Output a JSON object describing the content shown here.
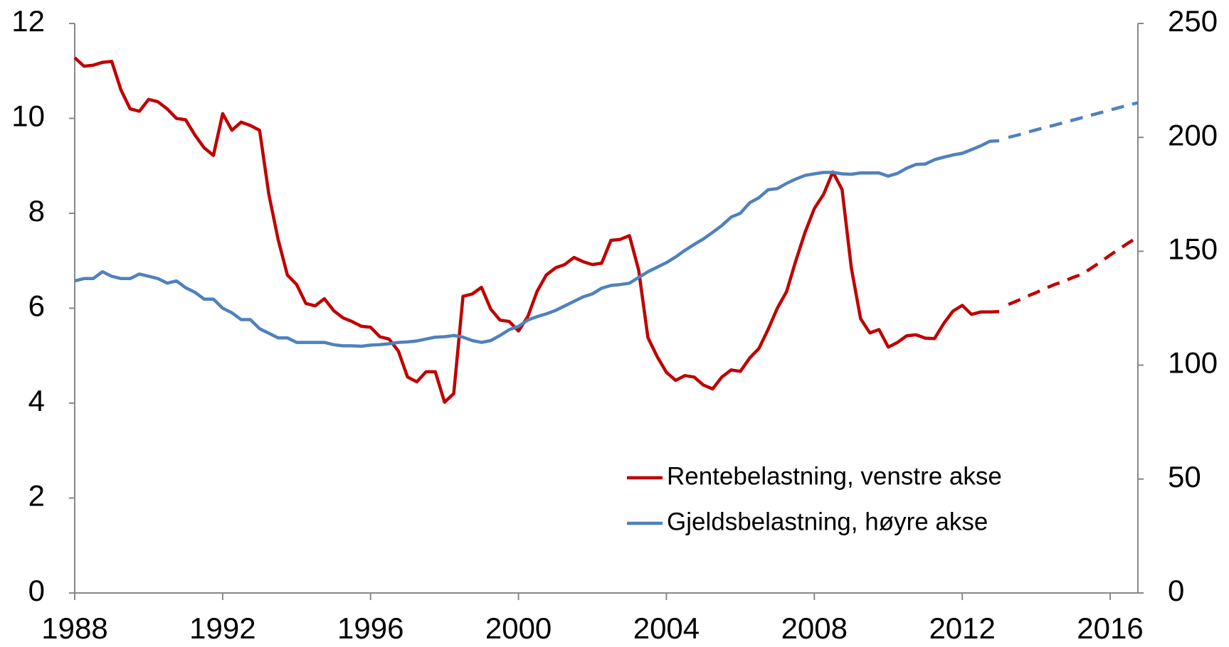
{
  "chart_data": {
    "type": "line",
    "x": [
      1988,
      1988.25,
      1988.5,
      1988.75,
      1989,
      1989.25,
      1989.5,
      1989.75,
      1990,
      1990.25,
      1990.5,
      1990.75,
      1991,
      1991.25,
      1991.5,
      1991.75,
      1992,
      1992.25,
      1992.5,
      1992.75,
      1993,
      1993.25,
      1993.5,
      1993.75,
      1994,
      1994.25,
      1994.5,
      1994.75,
      1995,
      1995.25,
      1995.5,
      1995.75,
      1996,
      1996.25,
      1996.5,
      1996.75,
      1997,
      1997.25,
      1997.5,
      1997.75,
      1998,
      1998.25,
      1998.5,
      1998.75,
      1999,
      1999.25,
      1999.5,
      1999.75,
      2000,
      2000.25,
      2000.5,
      2000.75,
      2001,
      2001.25,
      2001.5,
      2001.75,
      2002,
      2002.25,
      2002.5,
      2002.75,
      2003,
      2003.25,
      2003.5,
      2003.75,
      2004,
      2004.25,
      2004.5,
      2004.75,
      2005,
      2005.25,
      2005.5,
      2005.75,
      2006,
      2006.25,
      2006.5,
      2006.75,
      2007,
      2007.25,
      2007.5,
      2007.75,
      2008,
      2008.25,
      2008.5,
      2008.75,
      2009,
      2009.25,
      2009.5,
      2009.75,
      2010,
      2010.25,
      2010.5,
      2010.75,
      2011,
      2011.25,
      2011.5,
      2011.75,
      2012,
      2012.25,
      2012.5,
      2012.75,
      2013,
      2013.25,
      2013.5,
      2013.75,
      2014,
      2014.25,
      2014.5,
      2014.75,
      2015,
      2015.25,
      2015.5,
      2015.75,
      2016,
      2016.25,
      2016.5,
      2016.75
    ],
    "forecast_from": 2013.25,
    "series": [
      {
        "name": "Rentebelastning, venstre akse",
        "color": "#c00000",
        "axis": "y",
        "values": [
          11.28,
          11.1,
          11.12,
          11.18,
          11.2,
          10.6,
          10.2,
          10.15,
          10.4,
          10.35,
          10.2,
          10.0,
          9.97,
          9.65,
          9.38,
          9.22,
          10.1,
          9.75,
          9.92,
          9.85,
          9.75,
          8.4,
          7.45,
          6.7,
          6.5,
          6.1,
          6.05,
          6.2,
          5.95,
          5.8,
          5.72,
          5.62,
          5.6,
          5.4,
          5.35,
          5.1,
          4.55,
          4.45,
          4.66,
          4.66,
          4.02,
          4.2,
          6.25,
          6.3,
          6.44,
          5.98,
          5.75,
          5.72,
          5.52,
          5.82,
          6.35,
          6.7,
          6.85,
          6.92,
          7.07,
          6.98,
          6.92,
          6.95,
          7.43,
          7.45,
          7.53,
          6.8,
          5.38,
          4.98,
          4.65,
          4.48,
          4.58,
          4.55,
          4.38,
          4.3,
          4.55,
          4.7,
          4.67,
          4.95,
          5.15,
          5.55,
          6.0,
          6.35,
          7.0,
          7.6,
          8.1,
          8.4,
          8.87,
          8.5,
          6.85,
          5.78,
          5.48,
          5.55,
          5.18,
          5.28,
          5.42,
          5.44,
          5.37,
          5.36,
          5.68,
          5.94,
          6.06,
          5.87,
          5.92,
          5.92,
          5.93,
          6.08,
          6.16,
          6.25,
          6.33,
          6.42,
          6.5,
          6.57,
          6.65,
          6.72,
          6.85,
          6.98,
          7.12,
          7.25,
          7.38,
          7.5
        ]
      },
      {
        "name": "Gjeldsbelastning, høyre akse",
        "color": "#4f81bd",
        "axis": "y2",
        "values": [
          137,
          138,
          138,
          141,
          139,
          138,
          138,
          140,
          139,
          138,
          136,
          137,
          134,
          132,
          129,
          129,
          125,
          123,
          120,
          120,
          116,
          114,
          112,
          112,
          110,
          110,
          110,
          110,
          109,
          108.5,
          108.5,
          108.3,
          108.8,
          109,
          109.4,
          110,
          110.2,
          110.6,
          111.5,
          112.3,
          112.5,
          113,
          112.3,
          110.8,
          110,
          110.8,
          113,
          115.6,
          117,
          119.8,
          121.3,
          122.5,
          124,
          126,
          128,
          130,
          131.3,
          133.8,
          135,
          135.4,
          136,
          138.5,
          141,
          143,
          145,
          147.5,
          150.4,
          153,
          155.4,
          158.3,
          161.3,
          165,
          166.7,
          171.3,
          173.5,
          177,
          177.5,
          179.8,
          181.7,
          183.3,
          184,
          184.6,
          184.6,
          184,
          183.8,
          184.4,
          184.4,
          184.4,
          183,
          184.2,
          186.5,
          188.1,
          188.3,
          190.2,
          191.3,
          192.3,
          193,
          194.6,
          196.3,
          198.3,
          198.5,
          200,
          201,
          202.2,
          203.3,
          204.4,
          205.4,
          206.5,
          207.6,
          208.7,
          209.8,
          210.9,
          212,
          213.1,
          214.2,
          215.2
        ]
      }
    ],
    "xlim": [
      1988,
      2016.75
    ],
    "xticks": [
      1988,
      1992,
      1996,
      2000,
      2004,
      2008,
      2012,
      2016
    ],
    "ylim": [
      0,
      12
    ],
    "yticks": [
      0,
      2,
      4,
      6,
      8,
      10,
      12
    ],
    "y2lim": [
      0,
      250
    ],
    "y2ticks": [
      0,
      50,
      100,
      150,
      200,
      250
    ],
    "grid": false
  }
}
